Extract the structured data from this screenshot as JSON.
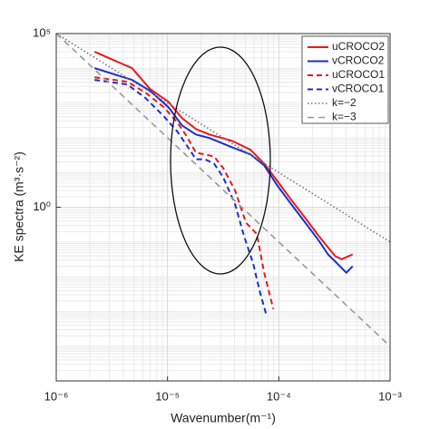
{
  "chart_data": {
    "type": "line",
    "xlabel": "Wavenumber(m⁻¹)",
    "ylabel": "KE spectra (m³·s⁻²)",
    "xscale": "log",
    "yscale": "log",
    "grid": true,
    "legend": "upper right",
    "xlim": [
      1e-06,
      0.001
    ],
    "xticks": [
      {
        "value": 1e-06,
        "label": "10⁻⁶"
      },
      {
        "value": 1e-05,
        "label": "10⁻⁵"
      },
      {
        "value": 0.0001,
        "label": "10⁻⁴"
      },
      {
        "value": 0.001,
        "label": "10⁻³"
      }
    ],
    "ylim": [
      1e-05,
      100000
    ],
    "yticks": [
      {
        "value": 1,
        "label": "10⁰"
      },
      {
        "value": 100000,
        "label": "10⁵"
      }
    ],
    "series": [
      {
        "name": "uCROCO2",
        "color": "#e8191c",
        "style": "solid",
        "x": [
          2.21e-06,
          4.79e-06,
          6.98e-06,
          1.02e-05,
          1.35e-05,
          1.8e-05,
          2.38e-05,
          3.82e-05,
          5.57e-05,
          7.39e-05,
          9.8e-05,
          0.00013,
          0.000173,
          0.00023,
          0.000277,
          0.000322,
          0.000368,
          0.000461
        ],
        "values": [
          29900,
          10100,
          2530,
          1090,
          367,
          178,
          124,
          81,
          45,
          18,
          5.4,
          1.6,
          0.49,
          0.145,
          0.07,
          0.039,
          0.032,
          0.044
        ]
      },
      {
        "name": "vCROCO2",
        "color": "#1a2fcc",
        "style": "solid",
        "x": [
          2.21e-06,
          4.79e-06,
          6.98e-06,
          1.02e-05,
          1.35e-05,
          1.8e-05,
          2.38e-05,
          3.82e-05,
          5.57e-05,
          7.39e-05,
          9.8e-05,
          0.00013,
          0.000173,
          0.00023,
          0.000277,
          0.000335,
          0.000405,
          0.000461
        ],
        "values": [
          10100,
          4620,
          2240,
          759,
          227,
          124,
          98,
          53,
          33,
          16,
          4.0,
          1.2,
          0.36,
          0.107,
          0.044,
          0.024,
          0.013,
          0.02
        ]
      },
      {
        "name": "uCROCO1",
        "color": "#e8191c",
        "style": "dashed",
        "x": [
          2.21e-06,
          4.36e-06,
          6.35e-06,
          9.27e-06,
          1.23e-05,
          1.49e-05,
          1.8e-05,
          2.17e-05,
          2.62e-05,
          3.16e-05,
          4.05e-05,
          5.07e-05,
          6.35e-05,
          7.39e-05,
          8.93e-05
        ],
        "values": [
          5530,
          4100,
          1990,
          759,
          272,
          110,
          37,
          33,
          29,
          13.4,
          3.0,
          0.36,
          0.17,
          0.013,
          0.00117
        ]
      },
      {
        "name": "vCROCO1",
        "color": "#1a2fcc",
        "style": "dashed",
        "x": [
          2.21e-06,
          4.36e-06,
          6.35e-06,
          9.27e-06,
          1.23e-05,
          1.49e-05,
          1.8e-05,
          2.17e-05,
          2.62e-05,
          3.16e-05,
          4.05e-05,
          4.88e-05,
          5.89e-05,
          6.73e-05,
          7.67e-05
        ],
        "values": [
          4620,
          3420,
          1380,
          415,
          149,
          60,
          24,
          24,
          18,
          7.3,
          1.2,
          0.145,
          0.024,
          0.0039,
          0.00086
        ]
      },
      {
        "name": "k=−2",
        "color": "#777777",
        "style": "dotted",
        "x": [
          1e-06,
          0.001
        ],
        "values": [
          100000,
          0.1
        ]
      },
      {
        "name": "k=−3",
        "color": "#999999",
        "style": "longdash",
        "x": [
          1e-06,
          0.001
        ],
        "values": [
          100000,
          0.0001
        ]
      }
    ]
  }
}
